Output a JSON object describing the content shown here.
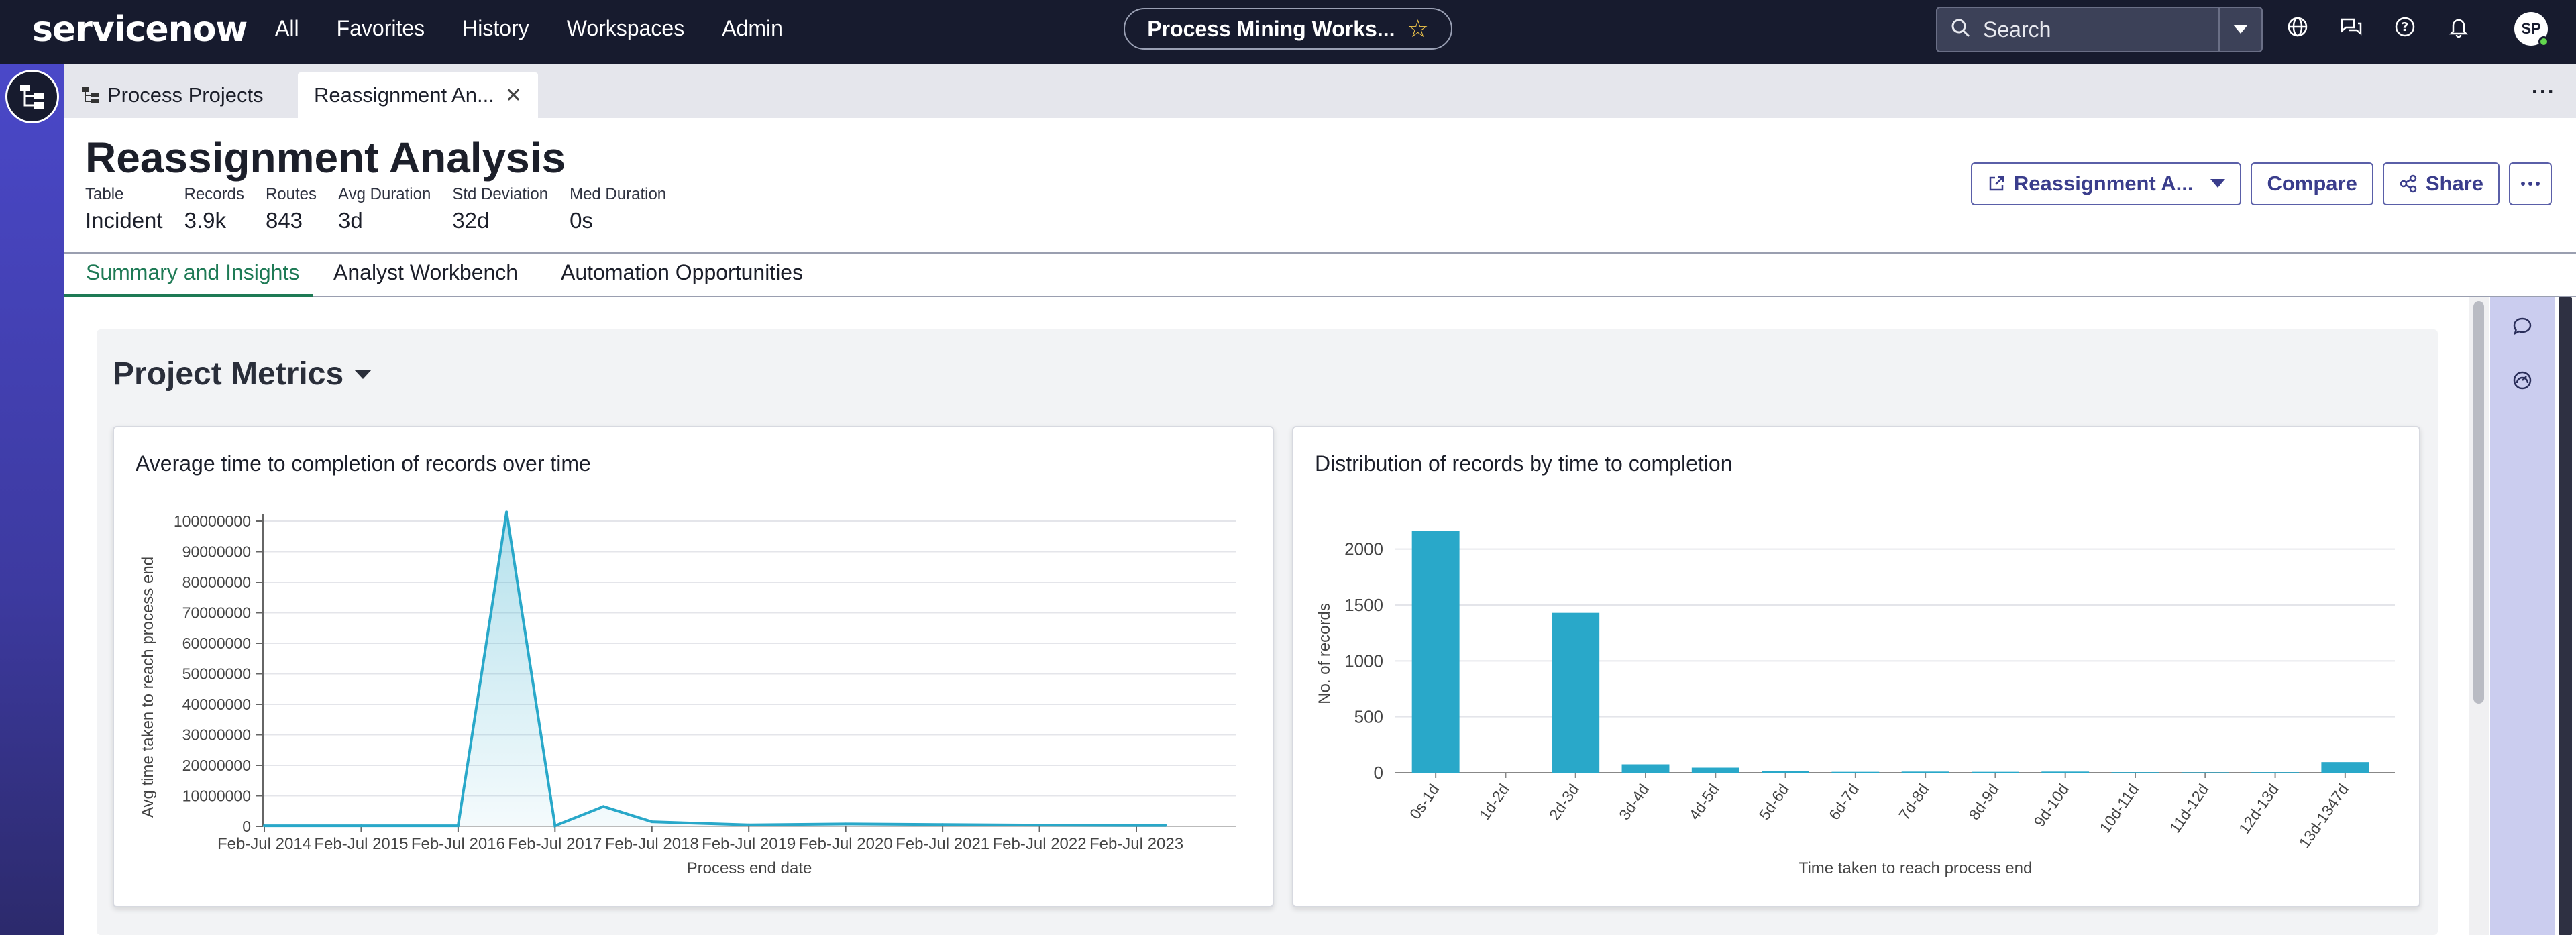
{
  "topbar": {
    "logo": "servicenow",
    "nav": [
      "All",
      "Favorites",
      "History",
      "Workspaces",
      "Admin"
    ],
    "workspace": "Process Mining Works...",
    "search_label": "Search",
    "avatar_initials": "SP"
  },
  "tabs": {
    "items": [
      {
        "label": "Process Projects"
      },
      {
        "label": "Reassignment An..."
      }
    ]
  },
  "header": {
    "title": "Reassignment Analysis",
    "metrics": [
      {
        "label": "Table",
        "value": "Incident"
      },
      {
        "label": "Records",
        "value": "3.9k"
      },
      {
        "label": "Routes",
        "value": "843"
      },
      {
        "label": "Avg Duration",
        "value": "3d"
      },
      {
        "label": "Std Deviation",
        "value": "32d"
      },
      {
        "label": "Med Duration",
        "value": "0s"
      }
    ],
    "actions": {
      "dropdown_label": "Reassignment A...",
      "compare_label": "Compare",
      "share_label": "Share"
    }
  },
  "subtabs": [
    "Summary and Insights",
    "Analyst Workbench",
    "Automation Opportunities"
  ],
  "panel": {
    "title": "Project Metrics"
  },
  "chart_data": [
    {
      "type": "area",
      "title": "Average time to completion of records over time",
      "xlabel": "Process end date",
      "ylabel": "Avg time taken to reach process end",
      "x_ticks": [
        "Feb-Jul 2014",
        "Feb-Jul 2015",
        "Feb-Jul 2016",
        "Feb-Jul 2017",
        "Feb-Jul 2018",
        "Feb-Jul 2019",
        "Feb-Jul 2020",
        "Feb-Jul 2021",
        "Feb-Jul 2022",
        "Feb-Jul 2023"
      ],
      "y_ticks": [
        "0",
        "10000000",
        "20000000",
        "30000000",
        "40000000",
        "50000000",
        "60000000",
        "70000000",
        "80000000",
        "90000000",
        "100000000"
      ],
      "ylim": [
        0,
        100000000
      ],
      "grid": true,
      "color": "#29a8c9",
      "points": [
        {
          "x": 0,
          "y": 200000
        },
        {
          "x": 1,
          "y": 200000
        },
        {
          "x": 2,
          "y": 200000
        },
        {
          "x": 2.5,
          "y": 103000000
        },
        {
          "x": 3,
          "y": 200000
        },
        {
          "x": 3.5,
          "y": 6500000
        },
        {
          "x": 4,
          "y": 1500000
        },
        {
          "x": 5,
          "y": 500000
        },
        {
          "x": 6,
          "y": 800000
        },
        {
          "x": 7,
          "y": 600000
        },
        {
          "x": 8,
          "y": 400000
        },
        {
          "x": 9,
          "y": 300000
        },
        {
          "x": 9.3,
          "y": 300000
        }
      ]
    },
    {
      "type": "bar",
      "title": "Distribution of records by time to completion",
      "xlabel": "Time taken to reach process end",
      "ylabel": "No. of records",
      "categories": [
        "0s-1d",
        "1d-2d",
        "2d-3d",
        "3d-4d",
        "4d-5d",
        "5d-6d",
        "6d-7d",
        "7d-8d",
        "8d-9d",
        "9d-10d",
        "10d-11d",
        "11d-12d",
        "12d-13d",
        "13d-1347d"
      ],
      "values": [
        2160,
        0,
        1430,
        75,
        45,
        18,
        8,
        10,
        8,
        10,
        5,
        4,
        5,
        95
      ],
      "y_ticks": [
        "0",
        "500",
        "1000",
        "1500",
        "2000"
      ],
      "ylim": [
        0,
        2250
      ],
      "grid": true,
      "color": "#29a8c9"
    }
  ]
}
